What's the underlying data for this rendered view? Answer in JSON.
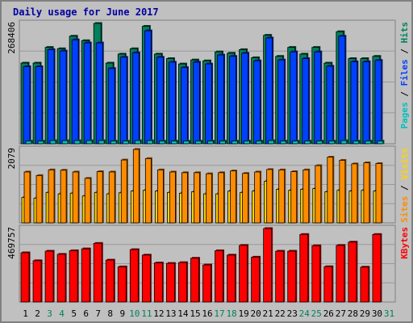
{
  "chart_data": {
    "type": "bar",
    "title": "Daily usage for June 2017",
    "categories": [
      "1",
      "2",
      "3",
      "4",
      "5",
      "6",
      "7",
      "8",
      "9",
      "10",
      "11",
      "12",
      "13",
      "14",
      "15",
      "16",
      "17",
      "18",
      "19",
      "20",
      "21",
      "22",
      "23",
      "24",
      "25",
      "26",
      "27",
      "28",
      "29",
      "30",
      "31"
    ],
    "weekend_days": [
      "3",
      "4",
      "10",
      "11",
      "17",
      "18",
      "24",
      "25",
      "31"
    ],
    "panels": [
      {
        "id": "top",
        "ymax_label": "268406",
        "ymax": 268406,
        "series": [
          {
            "name": "Hits",
            "color": "#00805c",
            "values": [
              180000,
              180000,
              215000,
              212000,
              240000,
              230000,
              268406,
              180000,
              200000,
              212000,
              262000,
              200000,
              190000,
              178000,
              187000,
              185000,
              205000,
              202000,
              210000,
              192000,
              242000,
              195000,
              215000,
              200000,
              215000,
              180000,
              250000,
              190000,
              190000,
              195000,
              null
            ]
          },
          {
            "name": "Files",
            "color": "#0040ff",
            "values": [
              172000,
              172000,
              210000,
              207000,
              232000,
              225000,
              225000,
              168000,
              193000,
              203000,
              252000,
              193000,
              182000,
              170000,
              182000,
              178000,
              198000,
              195000,
              202000,
              185000,
              236000,
              187000,
              205000,
              190000,
              205000,
              173000,
              240000,
              183000,
              183000,
              186000,
              null
            ]
          },
          {
            "name": "Pages",
            "color": "#00c0c0",
            "values": [
              6000,
              6000,
              7000,
              7000,
              7000,
              7000,
              7000,
              6000,
              6000,
              7000,
              7000,
              6000,
              6000,
              6000,
              6000,
              6000,
              6000,
              6000,
              6000,
              6000,
              7000,
              6000,
              6000,
              6000,
              6000,
              6000,
              7000,
              6000,
              6000,
              6000,
              null
            ]
          }
        ],
        "legend": [
          {
            "text": "Pages",
            "color": "#00c0c0"
          },
          {
            "text": " / ",
            "color": "#000000"
          },
          {
            "text": "Files",
            "color": "#0040ff"
          },
          {
            "text": " / ",
            "color": "#000000"
          },
          {
            "text": "Hits",
            "color": "#00805c"
          }
        ]
      },
      {
        "id": "mid",
        "ymax_label": "2079",
        "ymax": 2079,
        "series": [
          {
            "name": "Visits",
            "color": "#ffd400",
            "values": [
              720,
              700,
              860,
              820,
              840,
              760,
              860,
              820,
              850,
              900,
              920,
              900,
              860,
              840,
              880,
              820,
              820,
              900,
              860,
              900,
              1180,
              950,
              920,
              950,
              970,
              880,
              920,
              900,
              920,
              900,
              null
            ]
          },
          {
            "name": "Sites",
            "color": "#ff8c00",
            "values": [
              1440,
              1340,
              1500,
              1490,
              1440,
              1260,
              1450,
              1440,
              1780,
              2079,
              1820,
              1500,
              1440,
              1420,
              1420,
              1390,
              1420,
              1470,
              1400,
              1440,
              1510,
              1500,
              1450,
              1500,
              1620,
              1860,
              1770,
              1670,
              1700,
              1680,
              null
            ]
          }
        ],
        "legend": [
          {
            "text": "Sites",
            "color": "#ff8c00"
          },
          {
            "text": " / ",
            "color": "#000000"
          },
          {
            "text": "Visits",
            "color": "#ffd400"
          }
        ]
      },
      {
        "id": "bot",
        "ymax_label": "469757",
        "ymax": 469757,
        "series": [
          {
            "name": "KBytes",
            "color": "#ff0000",
            "values": [
              315000,
              264000,
              325000,
              305000,
              328000,
              340000,
              375000,
              268000,
              225000,
              335000,
              300000,
              250000,
              247000,
              252000,
              280000,
              237000,
              328000,
              300000,
              362000,
              287000,
              469757,
              325000,
              325000,
              432000,
              360000,
              226000,
              362000,
              383000,
              223000,
              432000,
              null
            ]
          }
        ],
        "legend": [
          {
            "text": "KBytes",
            "color": "#ff0000"
          }
        ]
      }
    ]
  }
}
